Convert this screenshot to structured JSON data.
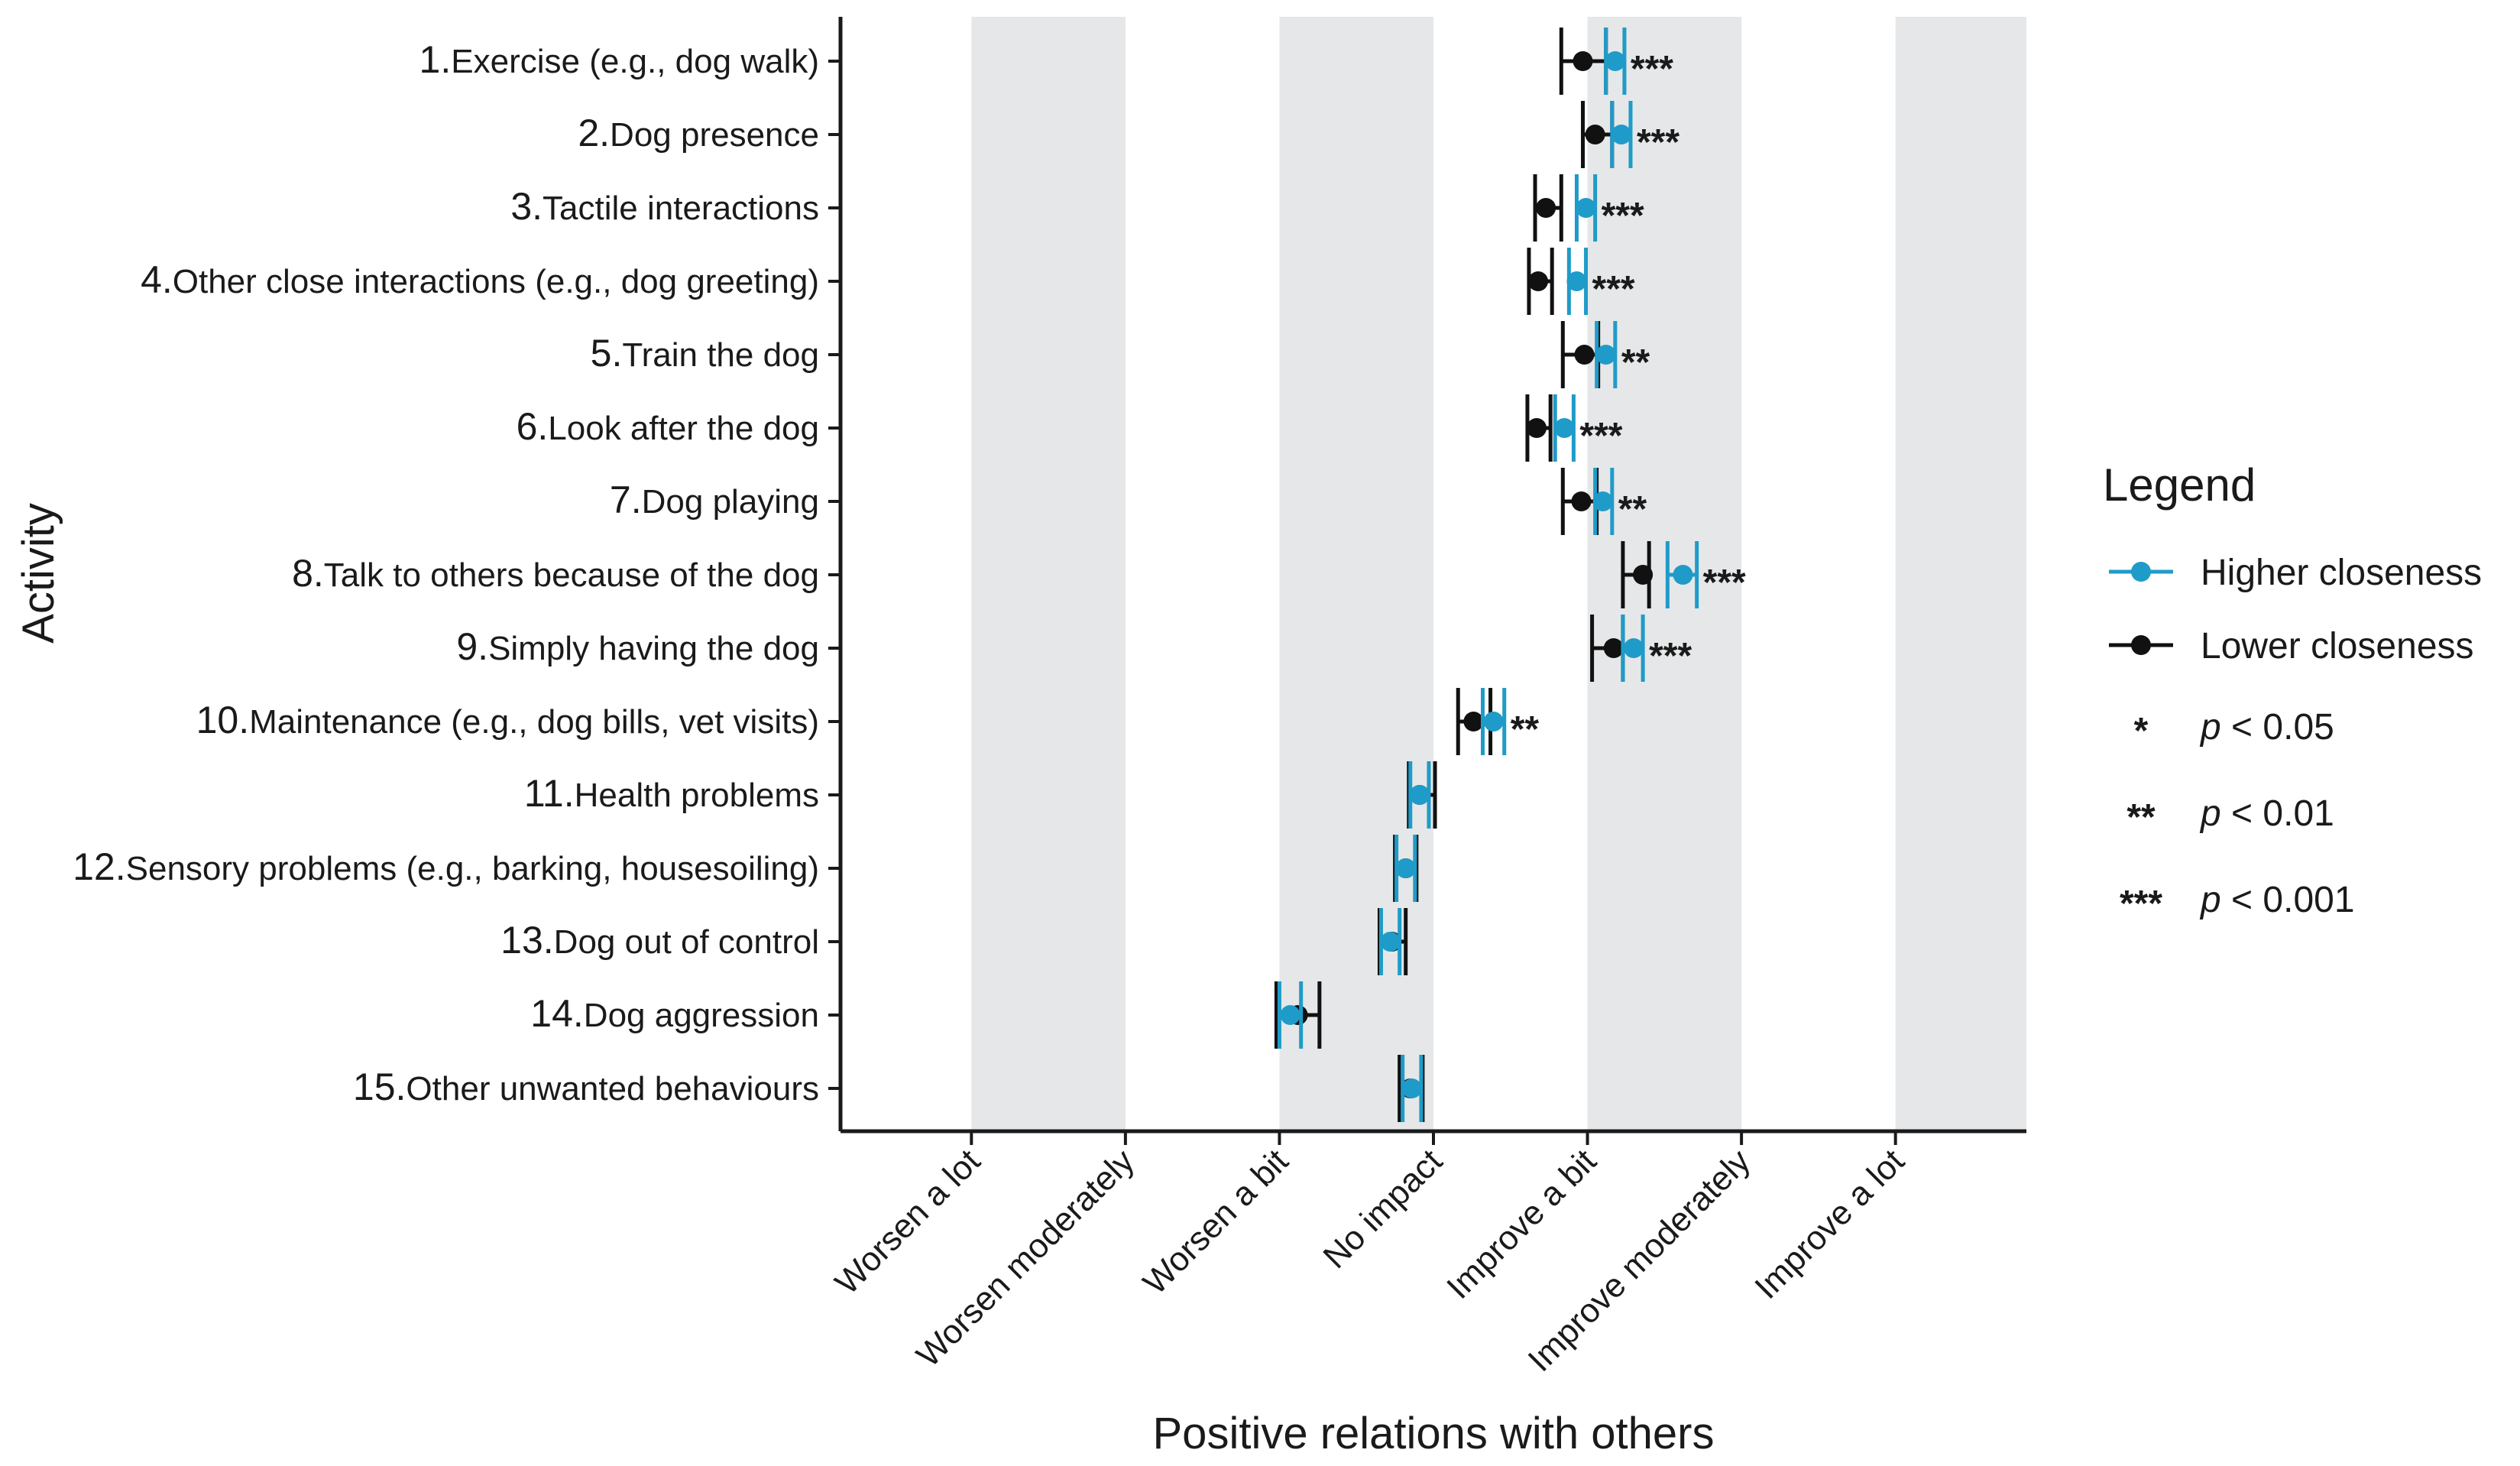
{
  "chart_data": {
    "type": "scatter",
    "subtype": "dot-and-whisker",
    "xlabel": "Positive relations with others",
    "ylabel": "Activity",
    "x_ticks": [
      "Worsen a lot",
      "Worsen moderately",
      "Worsen a bit",
      "No impact",
      "Improve a bit",
      "Improve moderately",
      "Improve a lot"
    ],
    "x_tick_values": [
      -3,
      -2,
      -1,
      0,
      1,
      2,
      3
    ],
    "xlim": [
      -3.85,
      3.85
    ],
    "shaded_bands": [
      [
        -3,
        -2
      ],
      [
        -1,
        0
      ],
      [
        1,
        2
      ],
      [
        3,
        3.85
      ]
    ],
    "legend": {
      "title": "Legend",
      "position": "right",
      "series_entries": [
        {
          "key": "higher",
          "label": "Higher closeness"
        },
        {
          "key": "lower",
          "label": "Lower closeness"
        }
      ],
      "sig_entries": [
        {
          "stars": "*",
          "p": "p",
          "rest": " < 0.05"
        },
        {
          "stars": "**",
          "p": "p",
          "rest": " < 0.01"
        },
        {
          "stars": "***",
          "p": "p",
          "rest": " < 0.001"
        }
      ]
    },
    "colors": {
      "higher": "#1f9bc9",
      "lower": "#111111",
      "band": "#e6e7e8",
      "axis": "#1a1a1a"
    },
    "activities": [
      {
        "num": "1.",
        "label": "Exercise (e.g., dog walk)",
        "lower": {
          "mean": 0.97,
          "lo": 0.83,
          "hi": 1.12
        },
        "higher": {
          "mean": 1.18,
          "lo": 1.12,
          "hi": 1.24
        },
        "sig": "***"
      },
      {
        "num": "2.",
        "label": "Dog presence",
        "lower": {
          "mean": 1.05,
          "lo": 0.97,
          "hi": 1.16
        },
        "higher": {
          "mean": 1.22,
          "lo": 1.16,
          "hi": 1.28
        },
        "sig": "***"
      },
      {
        "num": "3.",
        "label": "Tactile interactions",
        "lower": {
          "mean": 0.73,
          "lo": 0.66,
          "hi": 0.83
        },
        "higher": {
          "mean": 0.99,
          "lo": 0.93,
          "hi": 1.05
        },
        "sig": "***"
      },
      {
        "num": "4.",
        "label": "Other close interactions (e.g., dog greeting)",
        "lower": {
          "mean": 0.68,
          "lo": 0.62,
          "hi": 0.77
        },
        "higher": {
          "mean": 0.93,
          "lo": 0.88,
          "hi": 0.99
        },
        "sig": "***"
      },
      {
        "num": "5.",
        "label": "Train the dog",
        "lower": {
          "mean": 0.98,
          "lo": 0.84,
          "hi": 1.07
        },
        "higher": {
          "mean": 1.12,
          "lo": 1.06,
          "hi": 1.18
        },
        "sig": "**"
      },
      {
        "num": "6.",
        "label": "Look after the dog",
        "lower": {
          "mean": 0.67,
          "lo": 0.61,
          "hi": 0.76
        },
        "higher": {
          "mean": 0.85,
          "lo": 0.79,
          "hi": 0.91
        },
        "sig": "***"
      },
      {
        "num": "7.",
        "label": "Dog playing",
        "lower": {
          "mean": 0.96,
          "lo": 0.84,
          "hi": 1.06
        },
        "higher": {
          "mean": 1.1,
          "lo": 1.05,
          "hi": 1.16
        },
        "sig": "**"
      },
      {
        "num": "8.",
        "label": "Talk to others because of the dog",
        "lower": {
          "mean": 1.36,
          "lo": 1.23,
          "hi": 1.4
        },
        "higher": {
          "mean": 1.62,
          "lo": 1.52,
          "hi": 1.71
        },
        "sig": "***"
      },
      {
        "num": "9.",
        "label": "Simply having the dog",
        "lower": {
          "mean": 1.17,
          "lo": 1.03,
          "hi": 1.23
        },
        "higher": {
          "mean": 1.3,
          "lo": 1.23,
          "hi": 1.36
        },
        "sig": "***"
      },
      {
        "num": "10.",
        "label": "Maintenance (e.g., dog bills, vet visits)",
        "lower": {
          "mean": 0.26,
          "lo": 0.16,
          "hi": 0.37
        },
        "higher": {
          "mean": 0.39,
          "lo": 0.32,
          "hi": 0.46
        },
        "sig": "**"
      },
      {
        "num": "11.",
        "label": "Health problems",
        "lower": {
          "mean": -0.09,
          "lo": -0.16,
          "hi": 0.01
        },
        "higher": {
          "mean": -0.09,
          "lo": -0.15,
          "hi": -0.03
        },
        "sig": ""
      },
      {
        "num": "12.",
        "label": "Sensory problems (e.g., barking, housesoiling)",
        "lower": {
          "mean": -0.18,
          "lo": -0.25,
          "hi": -0.11
        },
        "higher": {
          "mean": -0.18,
          "lo": -0.24,
          "hi": -0.12
        },
        "sig": ""
      },
      {
        "num": "13.",
        "label": "Dog out of control",
        "lower": {
          "mean": -0.27,
          "lo": -0.35,
          "hi": -0.18
        },
        "higher": {
          "mean": -0.28,
          "lo": -0.34,
          "hi": -0.22
        },
        "sig": ""
      },
      {
        "num": "14.",
        "label": "Dog aggression",
        "lower": {
          "mean": -0.88,
          "lo": -1.02,
          "hi": -0.74
        },
        "higher": {
          "mean": -0.93,
          "lo": -1.0,
          "hi": -0.86
        },
        "sig": ""
      },
      {
        "num": "15.",
        "label": "Other unwanted behaviours",
        "lower": {
          "mean": -0.15,
          "lo": -0.22,
          "hi": -0.07
        },
        "higher": {
          "mean": -0.14,
          "lo": -0.2,
          "hi": -0.08
        },
        "sig": ""
      }
    ]
  }
}
